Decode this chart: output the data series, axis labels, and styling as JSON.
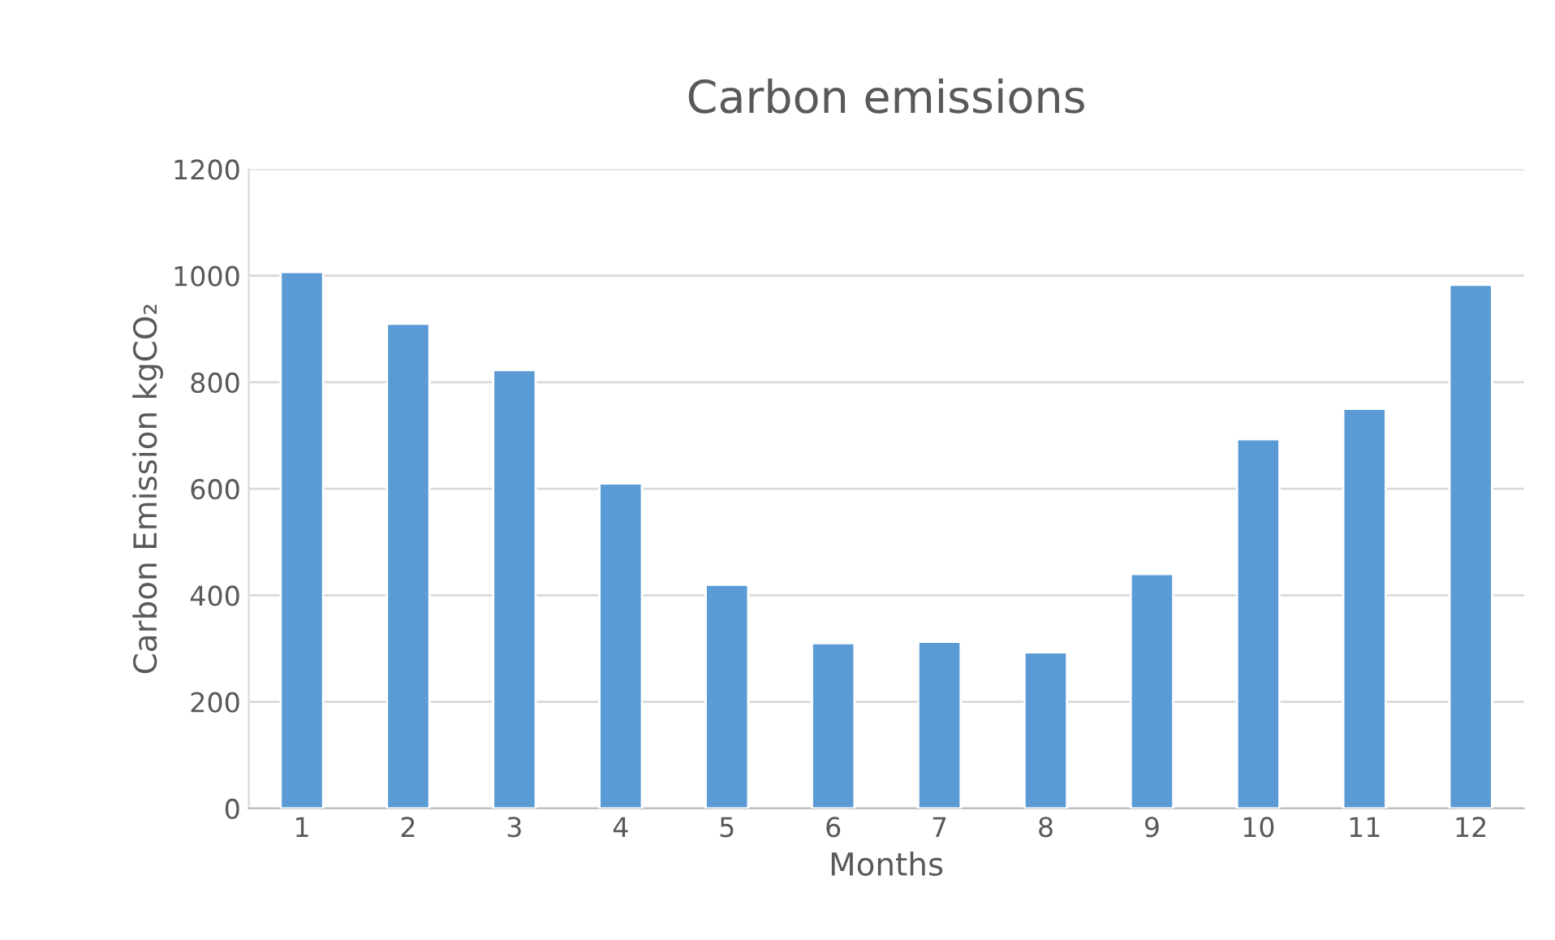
{
  "chart_data": {
    "type": "bar",
    "title": "Carbon emissions",
    "xlabel": "Months",
    "ylabel": "Carbon Emission kgCO₂",
    "categories": [
      "1",
      "2",
      "3",
      "4",
      "5",
      "6",
      "7",
      "8",
      "9",
      "10",
      "11",
      "12"
    ],
    "values": [
      1007,
      910,
      823,
      610,
      420,
      310,
      313,
      293,
      440,
      693,
      750,
      983
    ],
    "color": "#5b9bd5",
    "ylim": [
      0,
      1200
    ],
    "yticks": [
      0,
      200,
      400,
      600,
      800,
      1000,
      1200
    ],
    "grid": "y"
  }
}
